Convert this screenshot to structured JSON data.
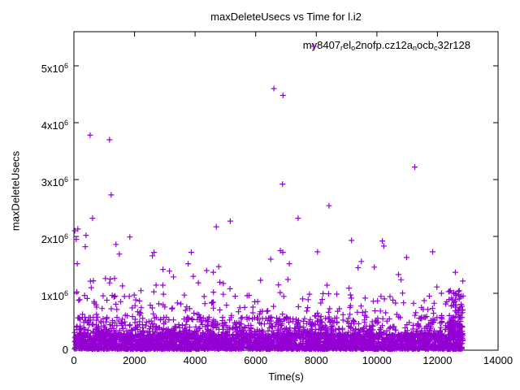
{
  "chart_data": {
    "type": "scatter",
    "title": "maxDeleteUsecs vs Time for l.i2",
    "xlabel": "Time(s)",
    "ylabel": "maxDeleteUsecs",
    "xlim": [
      0,
      14000
    ],
    "ylim": [
      0,
      5600000
    ],
    "grid": false,
    "background": "#ffffff",
    "axis_color": "#000000",
    "legend_position": "top-right-inside",
    "xticks": [
      {
        "v": 0,
        "label": "0"
      },
      {
        "v": 2000,
        "label": "2000"
      },
      {
        "v": 4000,
        "label": "4000"
      },
      {
        "v": 6000,
        "label": "6000"
      },
      {
        "v": 8000,
        "label": "8000"
      },
      {
        "v": 10000,
        "label": "10000"
      },
      {
        "v": 12000,
        "label": "12000"
      },
      {
        "v": 14000,
        "label": "14000"
      }
    ],
    "yticks": [
      {
        "v": 0,
        "base": "0",
        "exp": ""
      },
      {
        "v": 1000000,
        "base": "1x10",
        "exp": "6"
      },
      {
        "v": 2000000,
        "base": "2x10",
        "exp": "6"
      },
      {
        "v": 3000000,
        "base": "3x10",
        "exp": "6"
      },
      {
        "v": 4000000,
        "base": "4x10",
        "exp": "6"
      },
      {
        "v": 5000000,
        "base": "5x10",
        "exp": "6"
      }
    ],
    "series": [
      {
        "name": "my8407_rel_o2nofp.cz12a_nocb_c32r128",
        "legend_segments": [
          {
            "text": "my8407"
          },
          {
            "text": "r",
            "sub": true
          },
          {
            "text": "el"
          },
          {
            "text": "o",
            "sub": true
          },
          {
            "text": "2nofp.cz12a"
          },
          {
            "text": "n",
            "sub": true
          },
          {
            "text": "ocb"
          },
          {
            "text": "c",
            "sub": true
          },
          {
            "text": "32r128"
          }
        ],
        "color": "#9400d3",
        "marker": "plus",
        "time_range_s": [
          0,
          12850
        ],
        "outliers_usecs": [
          [
            30,
            2100000
          ],
          [
            75,
            1950000
          ],
          [
            110,
            1520000
          ],
          [
            130,
            2130000
          ],
          [
            375,
            1820000
          ],
          [
            400,
            2020000
          ],
          [
            535,
            3780000
          ],
          [
            615,
            2320000
          ],
          [
            640,
            1220000
          ],
          [
            1040,
            1260000
          ],
          [
            1175,
            3700000
          ],
          [
            1200,
            1250000
          ],
          [
            1230,
            2730000
          ],
          [
            1390,
            1860000
          ],
          [
            1500,
            1690000
          ],
          [
            1600,
            1130000
          ],
          [
            1845,
            1990000
          ],
          [
            2590,
            1660000
          ],
          [
            2645,
            1720000
          ],
          [
            2940,
            1420000
          ],
          [
            3155,
            1390000
          ],
          [
            3770,
            1520000
          ],
          [
            3875,
            1720000
          ],
          [
            4380,
            1400000
          ],
          [
            4600,
            1370000
          ],
          [
            4700,
            2170000
          ],
          [
            4780,
            1470000
          ],
          [
            5160,
            2270000
          ],
          [
            6495,
            1600000
          ],
          [
            6600,
            4600000
          ],
          [
            6815,
            1750000
          ],
          [
            6885,
            2920000
          ],
          [
            6895,
            1720000
          ],
          [
            6900,
            4480000
          ],
          [
            7110,
            1520000
          ],
          [
            7400,
            2320000
          ],
          [
            8040,
            1730000
          ],
          [
            8420,
            2540000
          ],
          [
            9165,
            1930000
          ],
          [
            9380,
            1450000
          ],
          [
            9490,
            1560000
          ],
          [
            9915,
            1460000
          ],
          [
            10180,
            1920000
          ],
          [
            10230,
            1830000
          ],
          [
            10715,
            1330000
          ],
          [
            10980,
            1630000
          ],
          [
            11250,
            3220000
          ],
          [
            11730,
            950000
          ],
          [
            11840,
            1730000
          ],
          [
            12130,
            1000000
          ],
          [
            12370,
            1030000
          ],
          [
            12590,
            1370000
          ]
        ],
        "dense_band": {
          "note": "thousands of overlapping samples between 0 and ~1.3x10^6 usecs across 0-12850s; reconstructed statistically from observed density",
          "seed": 42,
          "layers": [
            {
              "n": 2800,
              "t": [
                10,
                12840
              ],
              "y": [
                20000,
                280000
              ],
              "pow": 1.6
            },
            {
              "n": 900,
              "t": [
                10,
                12840
              ],
              "y": [
                250000,
                580000
              ],
              "pow": 1.8
            },
            {
              "n": 170,
              "t": [
                10,
                12840
              ],
              "y": [
                560000,
                1000000
              ],
              "pow": 1.4
            },
            {
              "n": 26,
              "t": [
                10,
                12840
              ],
              "y": [
                1000000,
                1320000
              ],
              "pow": 1.0
            },
            {
              "n": 90,
              "t": [
                12380,
                12850
              ],
              "y": [
                290000,
                1050000
              ],
              "pow": 2.0
            }
          ]
        }
      }
    ]
  }
}
